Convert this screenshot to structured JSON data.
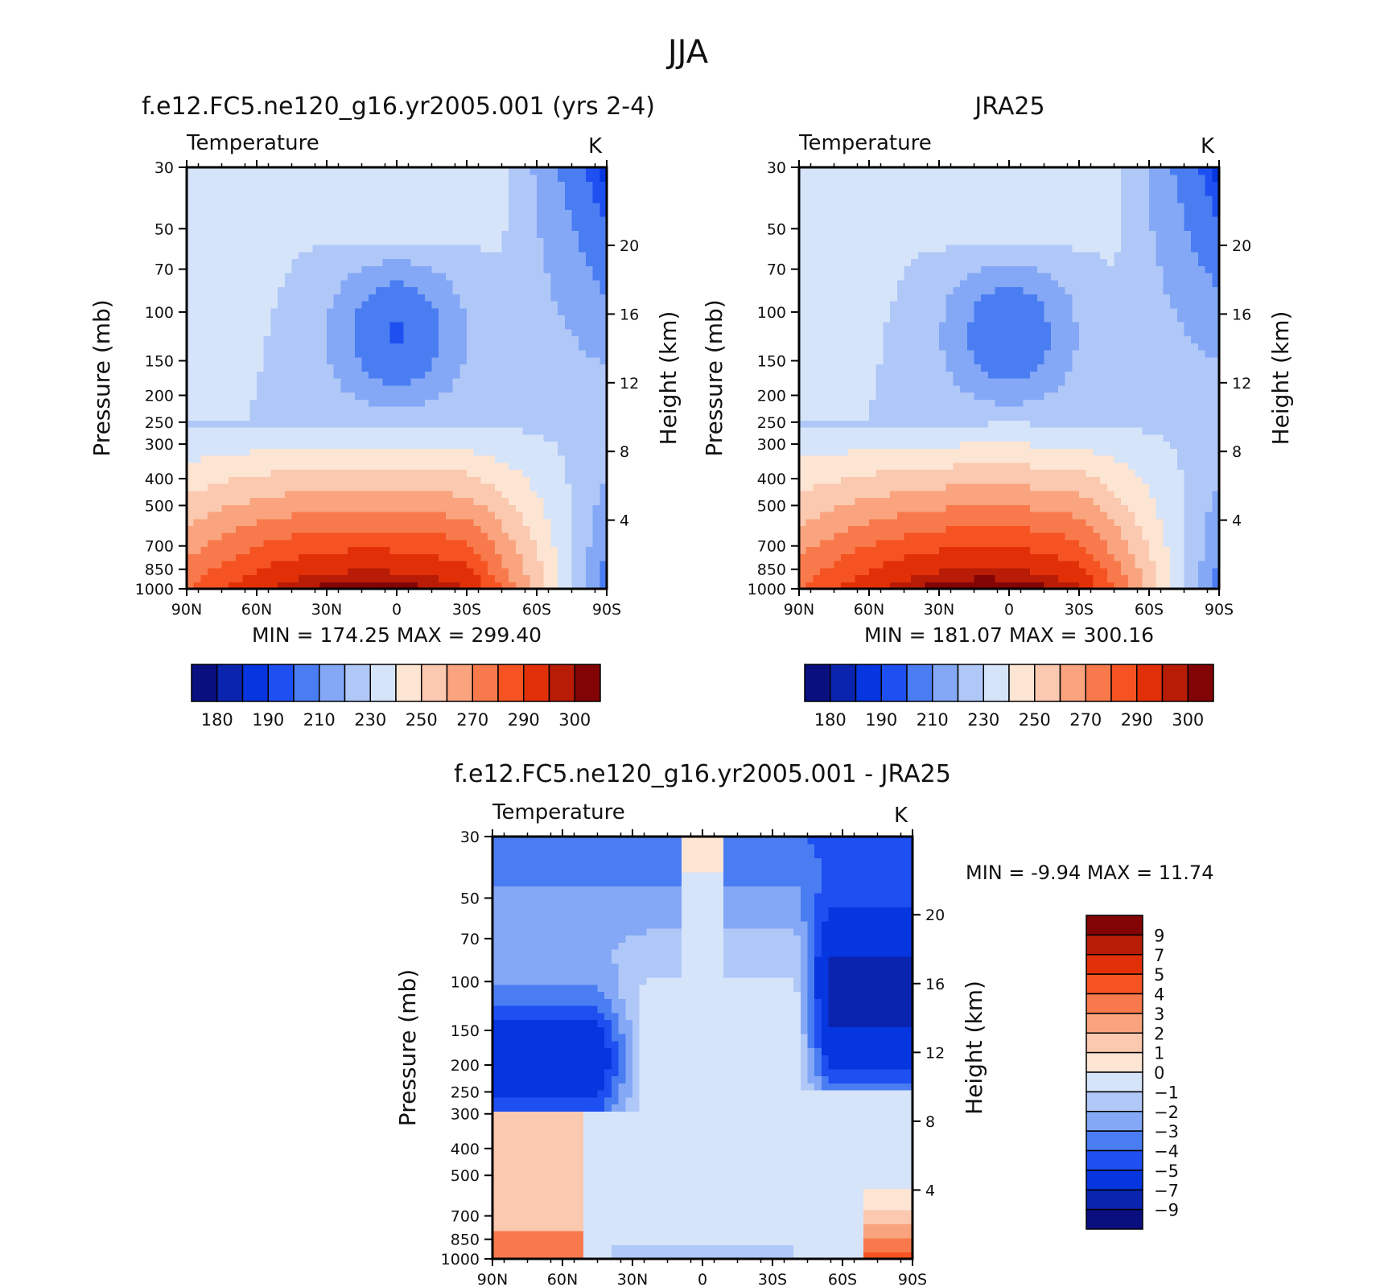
{
  "title": "JJA",
  "chart_data": [
    {
      "type": "heatmap",
      "title": "f.e12.FC5.ne120_g16.yr2005.001 (yrs 2-4)",
      "subtitle": "Temperature",
      "units": "K",
      "xlabel": "",
      "ylabel": "Pressure (mb)",
      "y2label": "Height (km)",
      "x_ticks": [
        "90N",
        "60N",
        "30N",
        "0",
        "30S",
        "60S",
        "90S"
      ],
      "y_ticks": [
        30,
        50,
        70,
        100,
        150,
        200,
        250,
        300,
        400,
        500,
        700,
        850,
        1000
      ],
      "y2_ticks": [
        20,
        16,
        12,
        8,
        4
      ],
      "y_scale": "log",
      "ylim": [
        1000,
        30
      ],
      "xlim": [
        90,
        -90
      ],
      "min": "MIN = 174.25",
      "max": "MAX = 299.40",
      "colorbar": {
        "labels": [
          "180",
          "190",
          "210",
          "230",
          "250",
          "270",
          "290",
          "300"
        ],
        "colors": [
          "#0a0f80",
          "#0b24b0",
          "#0636e0",
          "#1e4ff0",
          "#4a7df2",
          "#84a8f6",
          "#b0c8f8",
          "#d6e4fa",
          "#fde5d3",
          "#fbc8b0",
          "#f9a47e",
          "#f87a4c",
          "#f65322",
          "#e13008",
          "#b81c06",
          "#820404"
        ]
      },
      "levels": [
        175,
        180,
        185,
        190,
        200,
        210,
        220,
        230,
        240,
        250,
        260,
        270,
        280,
        290,
        295,
        300
      ]
    },
    {
      "type": "heatmap",
      "title": "JRA25",
      "subtitle": "Temperature",
      "units": "K",
      "xlabel": "",
      "ylabel": "Pressure (mb)",
      "y2label": "Height (km)",
      "x_ticks": [
        "90N",
        "60N",
        "30N",
        "0",
        "30S",
        "60S",
        "90S"
      ],
      "y_ticks": [
        30,
        50,
        70,
        100,
        150,
        200,
        250,
        300,
        400,
        500,
        700,
        850,
        1000
      ],
      "y2_ticks": [
        20,
        16,
        12,
        8,
        4
      ],
      "y_scale": "log",
      "ylim": [
        1000,
        30
      ],
      "xlim": [
        90,
        -90
      ],
      "min": "MIN = 181.07",
      "max": "MAX = 300.16",
      "colorbar": {
        "labels": [
          "180",
          "190",
          "210",
          "230",
          "250",
          "270",
          "290",
          "300"
        ],
        "colors": [
          "#0a0f80",
          "#0b24b0",
          "#0636e0",
          "#1e4ff0",
          "#4a7df2",
          "#84a8f6",
          "#b0c8f8",
          "#d6e4fa",
          "#fde5d3",
          "#fbc8b0",
          "#f9a47e",
          "#f87a4c",
          "#f65322",
          "#e13008",
          "#b81c06",
          "#820404"
        ]
      },
      "levels": [
        175,
        180,
        185,
        190,
        200,
        210,
        220,
        230,
        240,
        250,
        260,
        270,
        280,
        290,
        295,
        300
      ]
    },
    {
      "type": "heatmap",
      "title": "f.e12.FC5.ne120_g16.yr2005.001 - JRA25",
      "subtitle": "Temperature",
      "units": "K",
      "xlabel": "",
      "ylabel": "Pressure (mb)",
      "y2label": "Height (km)",
      "x_ticks": [
        "90N",
        "60N",
        "30N",
        "0",
        "30S",
        "60S",
        "90S"
      ],
      "y_ticks": [
        30,
        50,
        70,
        100,
        150,
        200,
        250,
        300,
        400,
        500,
        700,
        850,
        1000
      ],
      "y2_ticks": [
        20,
        16,
        12,
        8,
        4
      ],
      "y_scale": "log",
      "ylim": [
        1000,
        30
      ],
      "xlim": [
        90,
        -90
      ],
      "min": "MIN =   -9.94",
      "max": "MAX =   11.74",
      "colorbar": {
        "labels": [
          "9",
          "7",
          "5",
          "4",
          "3",
          "2",
          "1",
          "0",
          "−1",
          "−2",
          "−3",
          "−4",
          "−5",
          "−7",
          "−9"
        ],
        "colors": [
          "#820404",
          "#b81c06",
          "#e13008",
          "#f65322",
          "#f87a4c",
          "#f9a47e",
          "#fbc8b0",
          "#fde5d3",
          "#d6e4fa",
          "#b0c8f8",
          "#84a8f6",
          "#4a7df2",
          "#1e4ff0",
          "#0636e0",
          "#0b24b0",
          "#0a0f80"
        ]
      },
      "levels": [
        9,
        7,
        5,
        4,
        3,
        2,
        1,
        0,
        -1,
        -2,
        -3,
        -4,
        -5,
        -7,
        -9
      ]
    }
  ]
}
